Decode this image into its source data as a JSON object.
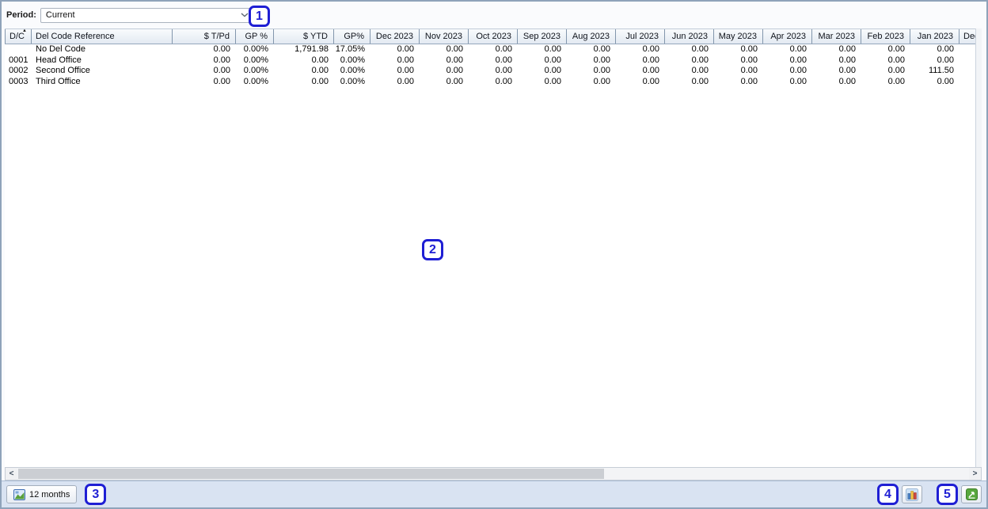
{
  "topbar": {
    "period_label": "Period:",
    "period_value": "Current"
  },
  "annotations": {
    "badge1": "1",
    "badge2": "2",
    "badge3": "3",
    "badge4": "4",
    "badge5": "5"
  },
  "table": {
    "columns": [
      "D/C",
      "Del Code Reference",
      "$ T/Pd",
      "GP %",
      "$ YTD",
      "GP%",
      "Dec 2023",
      "Nov 2023",
      "Oct 2023",
      "Sep 2023",
      "Aug 2023",
      "Jul 2023",
      "Jun 2023",
      "May 2023",
      "Apr 2023",
      "Mar 2023",
      "Feb 2023",
      "Jan 2023",
      "Dec"
    ],
    "sort_column": "D/C",
    "sort_direction": "ascending",
    "sort_glyph": "▲",
    "rows": [
      {
        "code": "",
        "name": "No Del Code",
        "values": [
          "0.00",
          "0.00%",
          "1,791.98",
          "17.05%",
          "0.00",
          "0.00",
          "0.00",
          "0.00",
          "0.00",
          "0.00",
          "0.00",
          "0.00",
          "0.00",
          "0.00",
          "0.00",
          "0.00",
          ""
        ]
      },
      {
        "code": "0001",
        "name": "Head Office",
        "values": [
          "0.00",
          "0.00%",
          "0.00",
          "0.00%",
          "0.00",
          "0.00",
          "0.00",
          "0.00",
          "0.00",
          "0.00",
          "0.00",
          "0.00",
          "0.00",
          "0.00",
          "0.00",
          "0.00",
          ""
        ]
      },
      {
        "code": "0002",
        "name": "Second Office",
        "values": [
          "0.00",
          "0.00%",
          "0.00",
          "0.00%",
          "0.00",
          "0.00",
          "0.00",
          "0.00",
          "0.00",
          "0.00",
          "0.00",
          "0.00",
          "0.00",
          "0.00",
          "0.00",
          "111.50",
          ""
        ]
      },
      {
        "code": "0003",
        "name": "Third Office",
        "values": [
          "0.00",
          "0.00%",
          "0.00",
          "0.00%",
          "0.00",
          "0.00",
          "0.00",
          "0.00",
          "0.00",
          "0.00",
          "0.00",
          "0.00",
          "0.00",
          "0.00",
          "0.00",
          "0.00",
          ""
        ]
      }
    ]
  },
  "scrollbar": {
    "left_arrow": "<",
    "right_arrow": ">"
  },
  "bottombar": {
    "months_button_label": "12 months"
  },
  "icons": {
    "dropdown": "chevron-down-icon",
    "sort": "sort-ascending-icon",
    "months_button": "chart-thumbnail-icon",
    "bar_chart_button": "bar-chart-icon",
    "excel_button": "excel-export-icon"
  },
  "colors": {
    "annotation_blue": "#1f1fd4",
    "bottombar_bg": "#d9e3f2",
    "header_gradient_top": "#f9fbfd",
    "header_gradient_bottom": "#e3eaf2",
    "excel_green": "#58a83e",
    "bar_blue": "#4d82c4",
    "bar_yellow": "#f3c043",
    "bar_red": "#cf4a41"
  }
}
